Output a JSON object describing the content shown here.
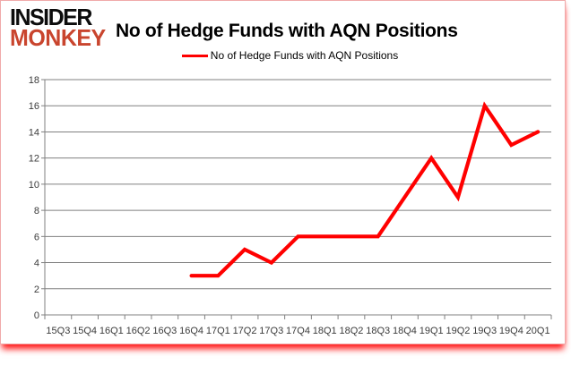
{
  "logo": {
    "line1": "INSIDER",
    "line2": "MONKEY",
    "line1_color": "#0d0d0d",
    "line2_color": "#c9452e"
  },
  "header": {
    "title": "No of Hedge Funds with AQN Positions"
  },
  "legend": {
    "label": "No of Hedge Funds with AQN Positions"
  },
  "chart_data": {
    "type": "line",
    "title": "No of Hedge Funds with AQN Positions",
    "categories": [
      "15Q3",
      "15Q4",
      "16Q1",
      "16Q2",
      "16Q3",
      "16Q4",
      "17Q1",
      "17Q2",
      "17Q3",
      "17Q4",
      "18Q1",
      "18Q2",
      "18Q3",
      "18Q4",
      "19Q1",
      "19Q2",
      "19Q3",
      "19Q4",
      "20Q1"
    ],
    "series": [
      {
        "name": "No of Hedge Funds with AQN Positions",
        "color": "#ff0000",
        "values": [
          null,
          null,
          null,
          null,
          null,
          3,
          3,
          5,
          4,
          6,
          6,
          6,
          6,
          9,
          12,
          9,
          16,
          13,
          14
        ]
      }
    ],
    "xlabel": "",
    "ylabel": "",
    "ylim": [
      0,
      18
    ],
    "ytick_step": 2,
    "grid": true,
    "gridline_color": "#808080",
    "tick_label_color": "#3b3b3b",
    "legend_position": "top-center"
  }
}
